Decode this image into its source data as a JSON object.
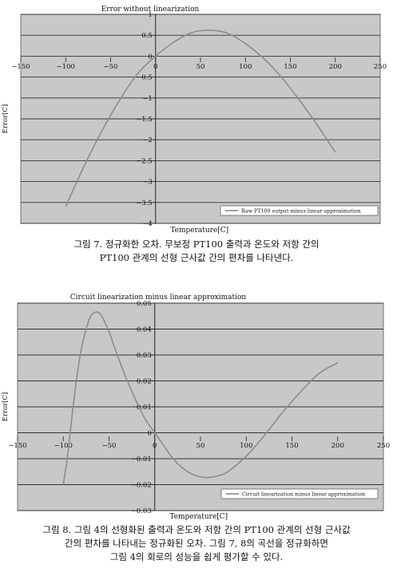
{
  "chart_data": [
    {
      "type": "line",
      "title": "Error without linearization",
      "xlabel": "Temperature[C]",
      "ylabel": "Error[C]",
      "xlim": [
        -150,
        250
      ],
      "ylim": [
        -4,
        1
      ],
      "xticks": [
        -150,
        -100,
        -50,
        0,
        50,
        100,
        150,
        200,
        250
      ],
      "xtick_labels": [
        "−150",
        "−100",
        "−50",
        "0",
        "50",
        "100",
        "150",
        "200",
        "250"
      ],
      "yticks": [
        1,
        0.5,
        0,
        -0.5,
        -1,
        -1.5,
        -2,
        -2.5,
        -3,
        -3.5,
        -4
      ],
      "ytick_labels": [
        "1",
        "0.5",
        "0",
        "−0.5",
        "−1",
        "−1.5",
        "−2",
        "−2.5",
        "−3",
        "−3.5",
        "−4"
      ],
      "grid": "horizontal",
      "legend_position": "bottom-right",
      "series": [
        {
          "name": "Raw PT100 output minus linear approximation",
          "color": "#8c8c8c",
          "x": [
            -100,
            -80,
            -60,
            -40,
            -20,
            0,
            20,
            40,
            60,
            80,
            100,
            120,
            140,
            160,
            180,
            200
          ],
          "y": [
            -3.6,
            -2.65,
            -1.8,
            -1.05,
            -0.42,
            0.0,
            0.33,
            0.56,
            0.62,
            0.55,
            0.3,
            -0.05,
            -0.5,
            -1.05,
            -1.65,
            -2.3
          ]
        }
      ]
    },
    {
      "type": "line",
      "title": "Circuit linearization minus linear approximation",
      "xlabel": "Temperature[C]",
      "ylabel": "Error[C]",
      "xlim": [
        -150,
        250
      ],
      "ylim": [
        -0.03,
        0.05
      ],
      "xticks": [
        -150,
        -100,
        -50,
        0,
        50,
        100,
        150,
        200,
        250
      ],
      "xtick_labels": [
        "−150",
        "−100",
        "−50",
        "0",
        "50",
        "100",
        "150",
        "200",
        "250"
      ],
      "yticks": [
        0.05,
        0.04,
        0.03,
        0.02,
        0.01,
        0,
        -0.01,
        -0.02,
        -0.03
      ],
      "ytick_labels": [
        "0.05",
        "0.04",
        "0.03",
        "0.02",
        "0.01",
        "0",
        "−0.01",
        "−0.02",
        "−0.03"
      ],
      "grid": "horizontal",
      "legend_position": "bottom-right",
      "series": [
        {
          "name": "Circuit linearization minus linear approximation",
          "color": "#8c8c8c",
          "x": [
            -100,
            -95,
            -90,
            -85,
            -80,
            -75,
            -70,
            -65,
            -60,
            -55,
            -50,
            -45,
            -40,
            -30,
            -20,
            -10,
            0,
            10,
            20,
            30,
            40,
            50,
            60,
            70,
            80,
            100,
            120,
            140,
            160,
            180,
            200
          ],
          "y": [
            -0.02,
            -0.008,
            0.008,
            0.022,
            0.033,
            0.04,
            0.045,
            0.0465,
            0.046,
            0.043,
            0.039,
            0.034,
            0.029,
            0.02,
            0.012,
            0.005,
            0.0,
            -0.005,
            -0.01,
            -0.0135,
            -0.0158,
            -0.017,
            -0.0172,
            -0.0165,
            -0.015,
            -0.009,
            -0.001,
            0.008,
            0.016,
            0.023,
            0.027
          ]
        }
      ]
    }
  ],
  "captions": {
    "fig7": [
      "그림 7. 정규화한 오차. 무보정 PT100 출력과 온도와 저항 간의",
      "PT100 관계의 선형 근사값 간의 편차를 나타낸다."
    ],
    "fig8": [
      "그림 8. 그림 4의 선형화된 출력과 온도와 저항 간의 PT100 관계의 선형 근사값",
      "간의 편차를 나타내는 정규화된 오차. 그림 7, 8의 곡선을 정규화하면",
      "그림 4의 회로의 성능을 쉽게 평가할 수 있다."
    ]
  },
  "colors": {
    "plot_background": "#c8c8c8",
    "gridline": "#333333",
    "curve": "#8c8c8c"
  }
}
